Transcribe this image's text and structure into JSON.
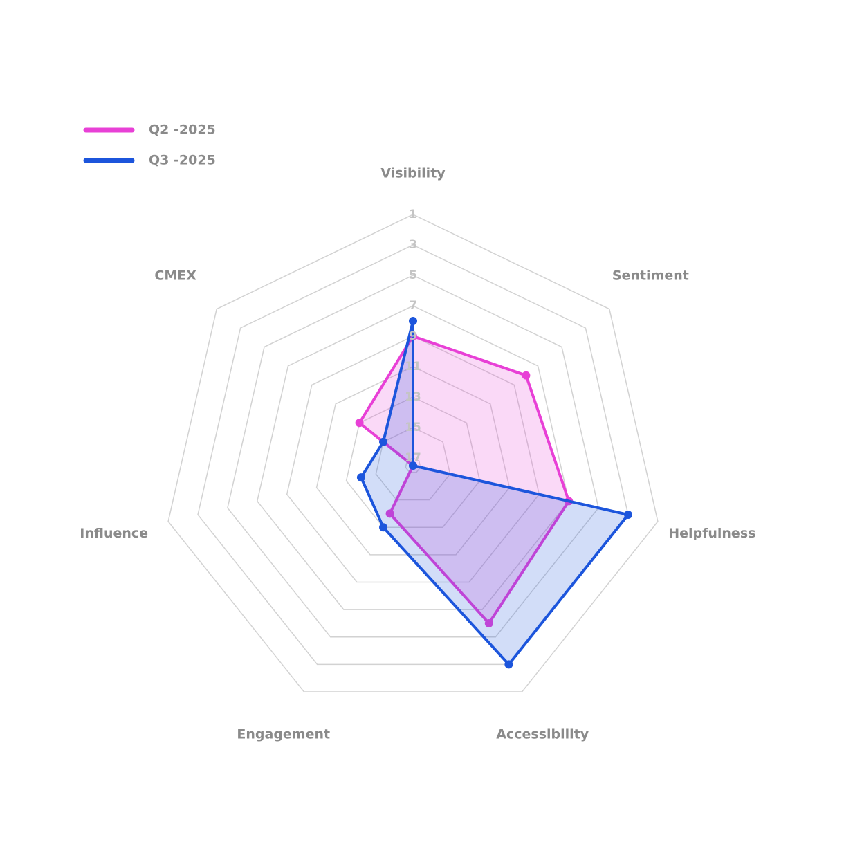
{
  "chart_data": {
    "type": "radar",
    "categories": [
      "Visibility",
      "Sentiment",
      "Helpfulness",
      "Accessibility",
      "Engagement",
      "Influence",
      "CMEX"
    ],
    "rlim": [
      17.5,
      1
    ],
    "rticks": [
      1,
      3,
      5,
      7,
      9,
      11,
      13,
      15,
      17
    ],
    "legend": "top-left",
    "series": [
      {
        "name": "Q2 -2025",
        "color": "#e840d6",
        "values": [
          9,
          8,
          7,
          6,
          14,
          17.5,
          13
        ]
      },
      {
        "name": "Q3 -2025",
        "color": "#1c55dc",
        "values": [
          8,
          17.5,
          3,
          3,
          13,
          14,
          15
        ]
      }
    ]
  }
}
